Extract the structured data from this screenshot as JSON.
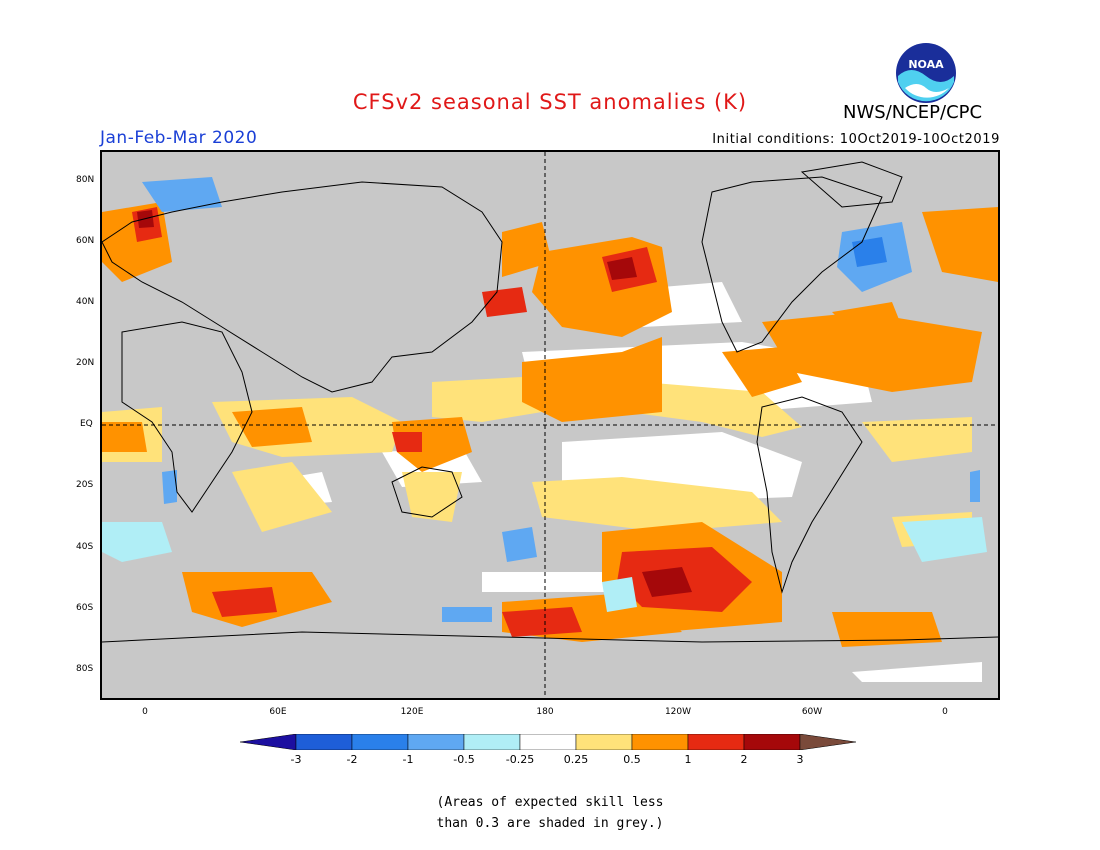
{
  "title": "CFSv2 seasonal SST anomalies (K)",
  "org": "NWS/NCEP/CPC",
  "logo_text": "NOAA",
  "season": "Jan-Feb-Mar 2020",
  "initial_conditions": "Initial conditions: 10Oct2019-10Oct2019",
  "lat_labels": [
    "80N",
    "60N",
    "40N",
    "20N",
    "EQ",
    "20S",
    "40S",
    "60S",
    "80S"
  ],
  "lon_labels": [
    "0",
    "60E",
    "120E",
    "180",
    "120W",
    "60W",
    "0"
  ],
  "colorbar": {
    "labels": [
      "-3",
      "-2",
      "-1",
      "-0.5",
      "-0.25",
      "0.25",
      "0.5",
      "1",
      "2",
      "3"
    ],
    "colors": [
      "#1c0fa0",
      "#1e5ed8",
      "#2a80ea",
      "#5fa8f2",
      "#b0eef6",
      "#ffffff",
      "#ffe27a",
      "#ff9200",
      "#e62a12",
      "#a5080a",
      "#7a4a3a"
    ]
  },
  "note_lines": [
    "(Areas of expected skill less",
    "than 0.3 are shaded in grey.)"
  ],
  "colors": {
    "grey_low_skill": "#c8c8c8",
    "title": "#e01818",
    "season": "#1a3fd6"
  }
}
